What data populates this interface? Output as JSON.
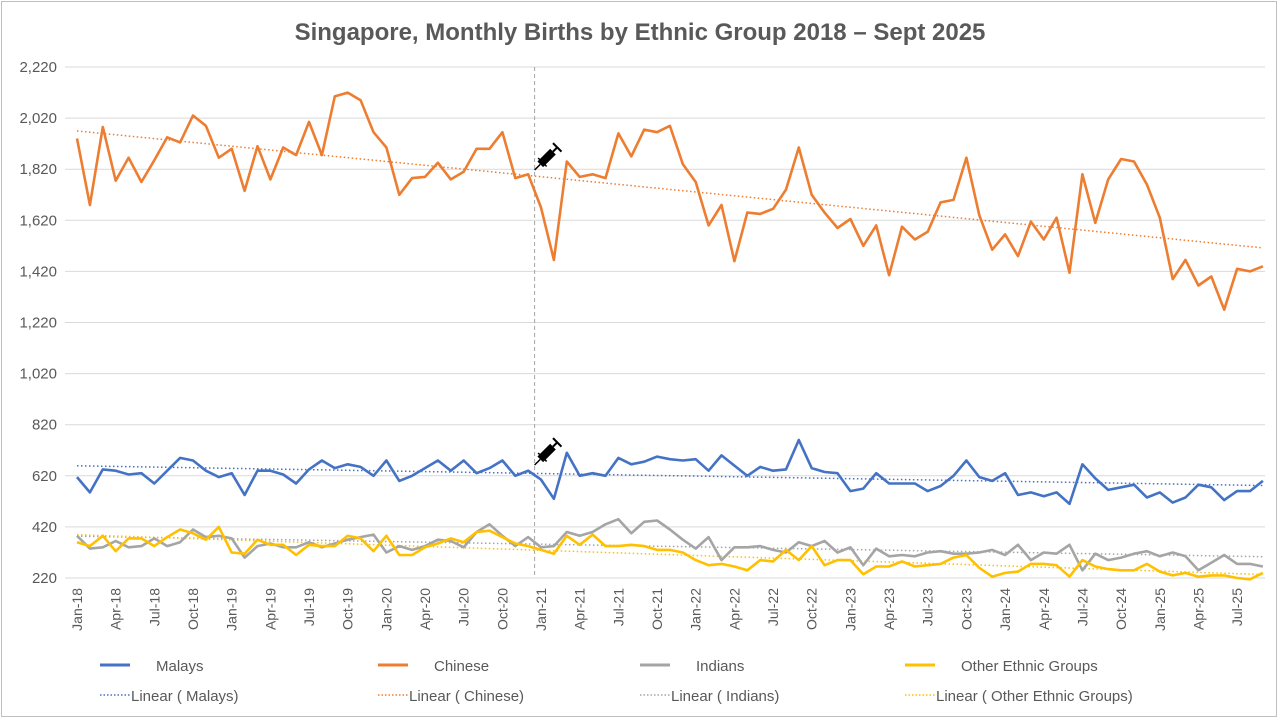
{
  "chart_data": {
    "type": "line",
    "title": "Singapore, Monthly Births by Ethnic Group 2018 – Sept 2025",
    "xlabel": "",
    "ylabel": "",
    "ylim": [
      220,
      2220
    ],
    "yticks": [
      "220",
      "420",
      "620",
      "820",
      "1,020",
      "1,220",
      "1,420",
      "1,620",
      "1,820",
      "2,020",
      "2,220"
    ],
    "x_start": "Jan-2018",
    "x_end": "Sep-2025",
    "x_tick_labels": [
      "Jan-18",
      "Apr-18",
      "Jul-18",
      "Oct-18",
      "Jan-19",
      "Apr-19",
      "Jul-19",
      "Oct-19",
      "Jan-20",
      "Apr-20",
      "Jul-20",
      "Oct-20",
      "Jan-21",
      "Apr-21",
      "Jul-21",
      "Oct-21",
      "Jan-22",
      "Apr-22",
      "Jul-22",
      "Oct-22",
      "Jan-23",
      "Apr-23",
      "Jul-23",
      "Oct-23",
      "Jan-24",
      "Apr-24",
      "Jul-24",
      "Oct-24",
      "Jan-25",
      "Apr-25",
      "Jul-25"
    ],
    "grid": true,
    "legend_placement": "bottom",
    "annotation": {
      "type": "vaccine-marker",
      "at": "Jan-21"
    },
    "series": [
      {
        "name": "Malays",
        "legend": "Malays",
        "trend_legend": "Linear (  Malays)",
        "color": "#4472c4",
        "trend_color": "#4472c4",
        "values": [
          615,
          555,
          645,
          640,
          625,
          630,
          590,
          640,
          690,
          680,
          640,
          615,
          630,
          545,
          640,
          640,
          625,
          590,
          645,
          680,
          650,
          665,
          655,
          620,
          680,
          600,
          620,
          650,
          680,
          640,
          680,
          630,
          650,
          680,
          620,
          640,
          605,
          530,
          710,
          620,
          630,
          620,
          690,
          665,
          675,
          695,
          685,
          680,
          685,
          640,
          700,
          660,
          620,
          655,
          640,
          645,
          760,
          650,
          635,
          630,
          560,
          570,
          630,
          590,
          590,
          590,
          560,
          580,
          620,
          680,
          615,
          600,
          630,
          545,
          555,
          540,
          555,
          510,
          665,
          610,
          565,
          575,
          585,
          535,
          555,
          515,
          535,
          585,
          575,
          525,
          560,
          560,
          600
        ]
      },
      {
        "name": "Chinese",
        "legend": "Chinese",
        "trend_legend": "Linear (  Chinese)",
        "color": "#ed7d31",
        "trend_color": "#ed7d31",
        "values": [
          1940,
          1680,
          1985,
          1775,
          1865,
          1770,
          1855,
          1945,
          1925,
          2030,
          1990,
          1865,
          1900,
          1735,
          1910,
          1780,
          1905,
          1875,
          2005,
          1875,
          2105,
          2120,
          2090,
          1965,
          1905,
          1720,
          1785,
          1790,
          1845,
          1780,
          1810,
          1900,
          1900,
          1965,
          1785,
          1800,
          1670,
          1465,
          1850,
          1790,
          1800,
          1785,
          1960,
          1870,
          1975,
          1965,
          1990,
          1840,
          1770,
          1600,
          1680,
          1460,
          1650,
          1645,
          1665,
          1740,
          1905,
          1720,
          1650,
          1590,
          1625,
          1520,
          1600,
          1405,
          1595,
          1545,
          1575,
          1690,
          1700,
          1865,
          1640,
          1505,
          1565,
          1480,
          1615,
          1545,
          1630,
          1415,
          1800,
          1610,
          1780,
          1860,
          1850,
          1760,
          1630,
          1390,
          1465,
          1365,
          1400,
          1270,
          1430,
          1420,
          1440
        ]
      },
      {
        "name": "Indians",
        "legend": "Indians",
        "trend_legend": "Linear (  Indians)",
        "color": "#a5a5a5",
        "trend_color": "#a5a5a5",
        "values": [
          385,
          335,
          340,
          365,
          340,
          345,
          375,
          345,
          360,
          410,
          380,
          385,
          375,
          300,
          345,
          355,
          340,
          340,
          360,
          340,
          355,
          370,
          380,
          390,
          320,
          345,
          330,
          345,
          370,
          365,
          340,
          400,
          430,
          385,
          345,
          380,
          340,
          345,
          400,
          385,
          400,
          430,
          450,
          395,
          440,
          445,
          410,
          370,
          335,
          380,
          290,
          340,
          340,
          345,
          330,
          320,
          360,
          345,
          365,
          320,
          340,
          270,
          335,
          305,
          310,
          305,
          320,
          325,
          315,
          315,
          320,
          330,
          310,
          350,
          290,
          320,
          315,
          350,
          250,
          315,
          290,
          300,
          315,
          325,
          305,
          320,
          305,
          250,
          280,
          310,
          275,
          275,
          265
        ]
      },
      {
        "name": "Other Ethnic Groups",
        "legend": "Other Ethnic Groups",
        "trend_legend": "Linear (  Other Ethnic Groups)",
        "color": "#ffc000",
        "trend_color": "#ffc000",
        "values": [
          360,
          345,
          385,
          325,
          375,
          375,
          345,
          380,
          410,
          395,
          370,
          420,
          320,
          315,
          370,
          350,
          350,
          310,
          350,
          345,
          345,
          385,
          375,
          325,
          385,
          310,
          310,
          340,
          355,
          375,
          360,
          400,
          405,
          380,
          355,
          345,
          330,
          315,
          385,
          350,
          390,
          345,
          345,
          350,
          345,
          330,
          330,
          320,
          290,
          270,
          275,
          265,
          250,
          290,
          285,
          330,
          290,
          345,
          270,
          290,
          290,
          235,
          265,
          265,
          285,
          265,
          270,
          275,
          300,
          310,
          260,
          225,
          240,
          245,
          275,
          275,
          270,
          225,
          290,
          265,
          255,
          250,
          250,
          275,
          245,
          230,
          240,
          225,
          230,
          230,
          220,
          215,
          240
        ]
      }
    ]
  }
}
